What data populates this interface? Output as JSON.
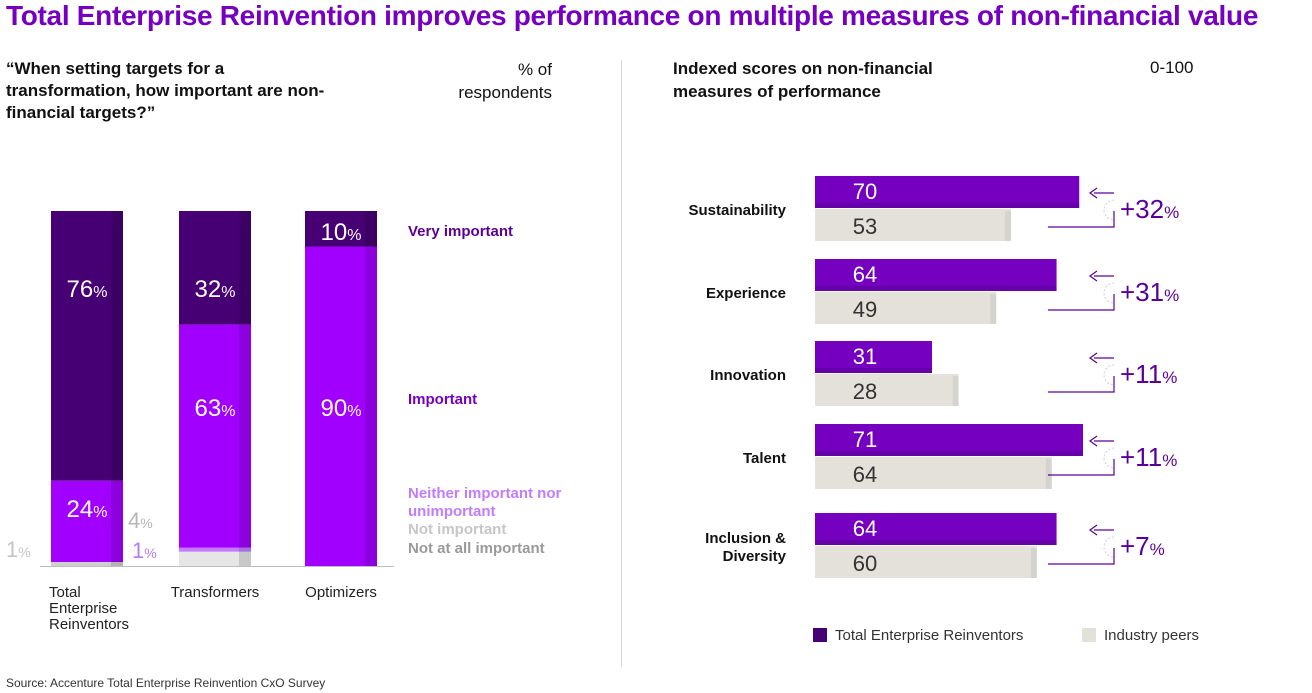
{
  "title": "Total Enterprise Reinvention improves performance on multiple measures of non-financial value",
  "source": "Source: Accenture Total Enterprise Reinvention CxO Survey",
  "colors": {
    "very_important": "#460073",
    "important": "#a100ff",
    "neither": "#c37cff",
    "not_important": "#e6e6e6",
    "not_at_all": "#cfcfcf",
    "ter_bar": "#7500c0",
    "peer_bar": "#e3e1da",
    "title": "#7500c0",
    "delta": "#5a0099"
  },
  "chart_data": [
    {
      "type": "bar",
      "stacked": true,
      "question": "“When setting targets for a transformation, how important are non-financial targets?”",
      "unit_label": "% of respondents",
      "categories": [
        "Total Enterprise Reinventors",
        "Transformers",
        "Optimizers"
      ],
      "series": [
        {
          "name": "Very important",
          "values": [
            76,
            32,
            10
          ]
        },
        {
          "name": "Important",
          "values": [
            24,
            63,
            90
          ]
        },
        {
          "name": "Neither important nor unimportant",
          "values": [
            0,
            1,
            0
          ]
        },
        {
          "name": "Not important",
          "values": [
            0,
            4,
            0
          ]
        },
        {
          "name": "Not at all important",
          "values": [
            1,
            0,
            0
          ]
        }
      ],
      "value_labels": {
        "Total Enterprise Reinventors": [
          "76%",
          "24%",
          "1%"
        ],
        "Transformers": [
          "32%",
          "63%",
          "4%",
          "1%"
        ],
        "Optimizers": [
          "10%",
          "90%"
        ]
      },
      "legend": [
        "Very important",
        "Important",
        "Neither important nor unimportant",
        "Not important",
        "Not at all important"
      ],
      "ylim": [
        0,
        100
      ]
    },
    {
      "type": "bar",
      "orientation": "horizontal",
      "title": "Indexed scores on non-financial measures of performance",
      "unit_label": "0-100",
      "categories": [
        "Sustainability",
        "Experience",
        "Innovation",
        "Talent",
        "Inclusion & Diversity"
      ],
      "series": [
        {
          "name": "Total Enterprise Reinventors",
          "values": [
            70,
            64,
            31,
            71,
            64
          ]
        },
        {
          "name": "Industry peers",
          "values": [
            53,
            49,
            28,
            64,
            60
          ]
        }
      ],
      "differences": [
        "+32%",
        "+31%",
        "+11%",
        "+11%",
        "+7%"
      ],
      "legend": [
        "Total Enterprise Reinventors",
        "Industry peers"
      ]
    }
  ]
}
